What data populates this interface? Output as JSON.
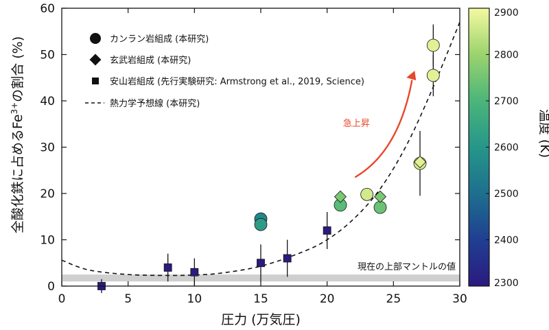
{
  "chart_data": {
    "type": "scatter",
    "xlabel": "圧力 (万気圧)",
    "ylabel_main": "全酸化鉄に占めるFe",
    "ylabel_sup": "3+",
    "ylabel_tail": "の割合 (%)",
    "xlim": [
      0,
      30
    ],
    "ylim": [
      0,
      60
    ],
    "xticks": [
      "0",
      "5",
      "10",
      "15",
      "20",
      "25",
      "30"
    ],
    "yticks": [
      "0",
      "10",
      "20",
      "30",
      "40",
      "50",
      "60"
    ],
    "colorbar": {
      "label": "温度 (K)",
      "range": [
        2300,
        2900
      ],
      "ticks": [
        "2300",
        "2400",
        "2500",
        "2600",
        "2700",
        "2800",
        "2900"
      ],
      "stops": [
        "#2b1a7f",
        "#1f3f91",
        "#1e6f8e",
        "#26968a",
        "#4bb57a",
        "#9bd36e",
        "#f4f9a0"
      ]
    },
    "reference_band": {
      "y": [
        1,
        2.5
      ],
      "label": "現在の上部マントルの値",
      "color": "#cfcfcf"
    },
    "annotation": {
      "text": "急上昇",
      "color": "#e8472a"
    },
    "series": [
      {
        "name": "カンラン岩組成 (本研究)",
        "marker": "circle",
        "points": [
          {
            "x": 15,
            "y": 14.5,
            "T": 2560
          },
          {
            "x": 15,
            "y": 13.3,
            "T": 2620
          },
          {
            "x": 21,
            "y": 17.5,
            "T": 2720
          },
          {
            "x": 23,
            "y": 19.8,
            "T": 2860
          },
          {
            "x": 24,
            "y": 17.0,
            "T": 2740
          },
          {
            "x": 27,
            "y": 26.5,
            "T": 2860,
            "err": 7
          },
          {
            "x": 28,
            "y": 52.0,
            "T": 2880,
            "err": 4.5
          },
          {
            "x": 28,
            "y": 45.5,
            "T": 2880,
            "err": 4.5
          }
        ]
      },
      {
        "name": "玄武岩組成 (本研究)",
        "marker": "diamond",
        "points": [
          {
            "x": 21,
            "y": 19.3,
            "T": 2760
          },
          {
            "x": 24,
            "y": 19.3,
            "T": 2760
          },
          {
            "x": 27,
            "y": 26.8,
            "T": 2880
          }
        ]
      },
      {
        "name": "安山岩組成 (先行実験研究: Armstrong et al., 2019, Science)",
        "marker": "square",
        "points": [
          {
            "x": 3,
            "y": 0,
            "T": 2300,
            "err": 1.5
          },
          {
            "x": 8,
            "y": 4,
            "T": 2300,
            "err": 3
          },
          {
            "x": 10,
            "y": 3,
            "T": 2300,
            "err": 3
          },
          {
            "x": 15,
            "y": 5,
            "T": 2300,
            "err": 4
          },
          {
            "x": 17,
            "y": 6,
            "T": 2300,
            "err": 4
          },
          {
            "x": 20,
            "y": 12,
            "T": 2300,
            "err": 4
          }
        ]
      },
      {
        "name": "熱力学予想線 (本研究)",
        "marker": "dashed-line",
        "x": [
          0,
          2,
          5,
          8,
          10,
          12,
          15,
          18,
          20,
          22,
          24,
          26,
          28,
          30
        ],
        "y": [
          5.6,
          3.5,
          2.5,
          2.3,
          2.4,
          2.8,
          4.3,
          7.2,
          10.0,
          14.5,
          21.0,
          30.5,
          43.0,
          57.0
        ]
      }
    ]
  }
}
